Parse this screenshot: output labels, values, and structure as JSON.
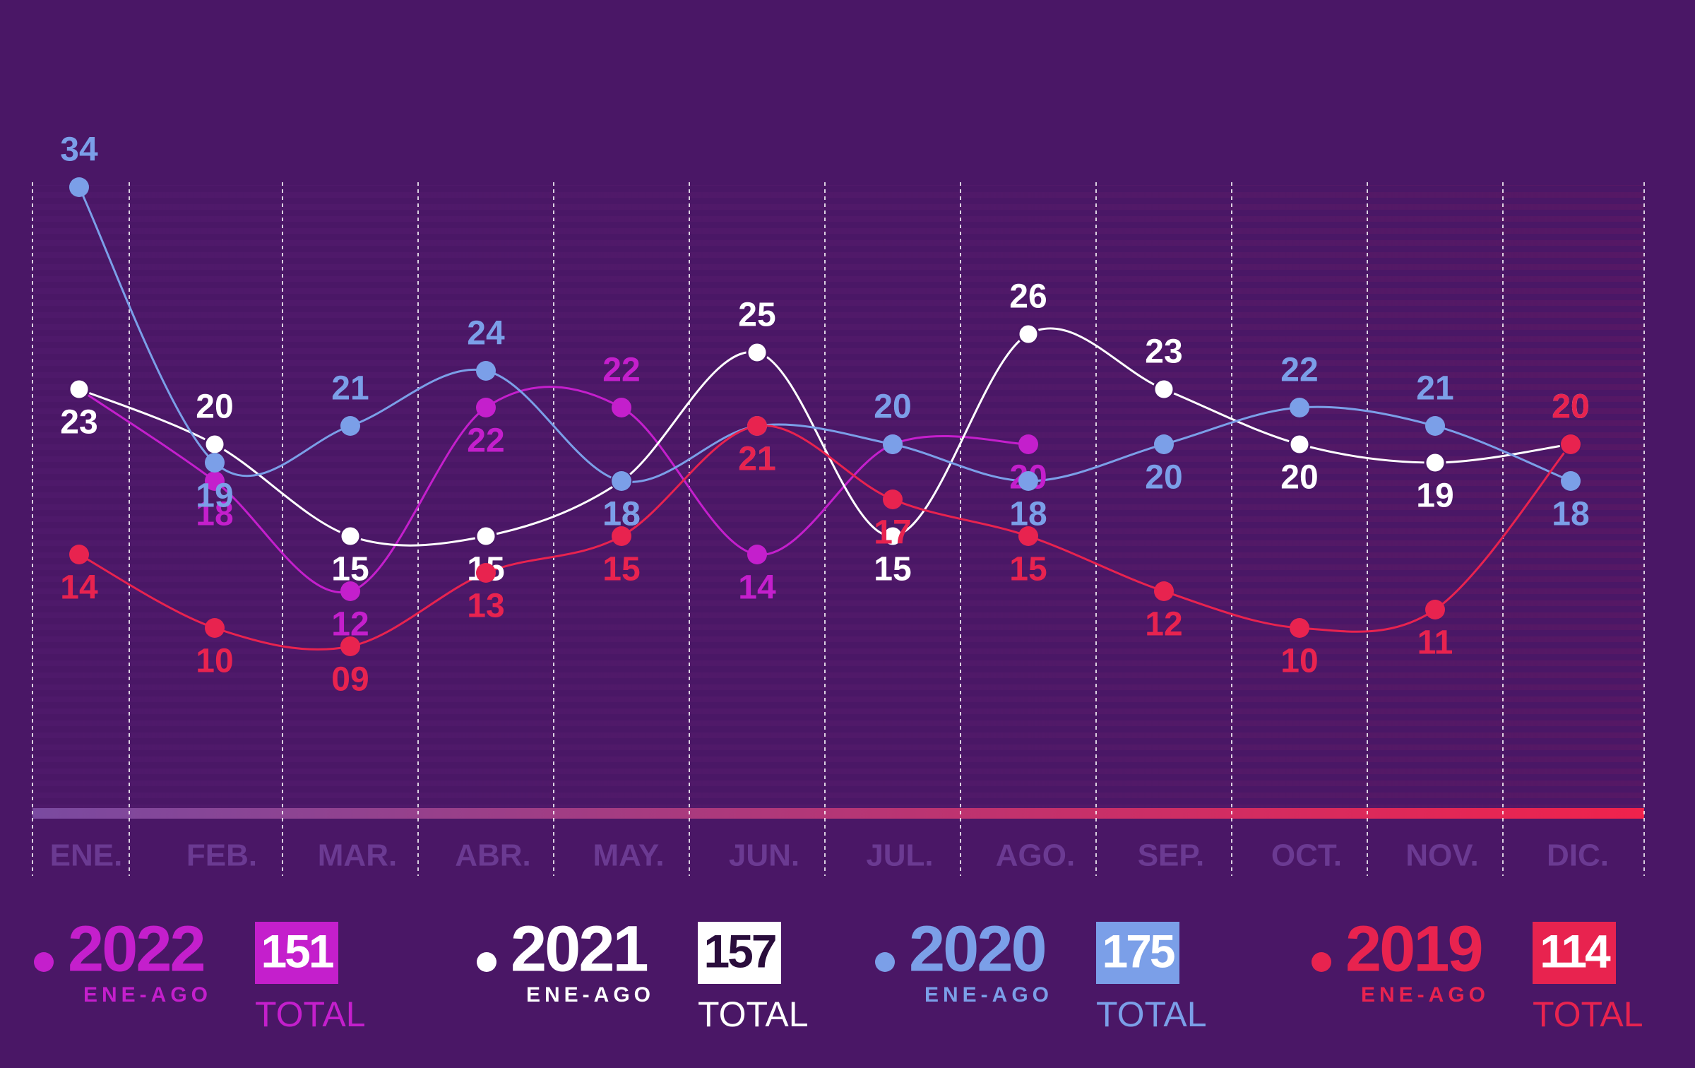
{
  "chart_data": {
    "type": "line",
    "categories": [
      "ENE.",
      "FEB.",
      "MAR.",
      "ABR.",
      "MAY.",
      "JUN.",
      "JUL.",
      "AGO.",
      "SEP.",
      "OCT.",
      "NOV.",
      "DIC."
    ],
    "ylim": [
      0,
      34
    ],
    "period_label": "ENE-AGO",
    "total_label": "TOTAL",
    "series": [
      {
        "name": "2022",
        "color": "#c41fcc",
        "values": [
          23,
          18,
          12,
          22,
          22,
          14,
          20,
          20,
          null,
          null,
          null,
          null
        ],
        "total": 151
      },
      {
        "name": "2021",
        "color": "#ffffff",
        "values": [
          23,
          20,
          15,
          15,
          18,
          25,
          15,
          26,
          23,
          20,
          19,
          20
        ],
        "total": 157
      },
      {
        "name": "2020",
        "color": "#7b9fe8",
        "values": [
          34,
          19,
          21,
          24,
          18,
          21,
          20,
          18,
          20,
          22,
          21,
          18
        ],
        "total": 175
      },
      {
        "name": "2019",
        "color": "#e8234f",
        "values": [
          14,
          10,
          9,
          13,
          15,
          21,
          17,
          15,
          12,
          10,
          11,
          20
        ],
        "value_labels": [
          "14",
          "10",
          "09",
          "13",
          "15",
          "21",
          "17",
          "15",
          "12",
          "10",
          "11",
          "20"
        ],
        "total": 114
      }
    ]
  }
}
